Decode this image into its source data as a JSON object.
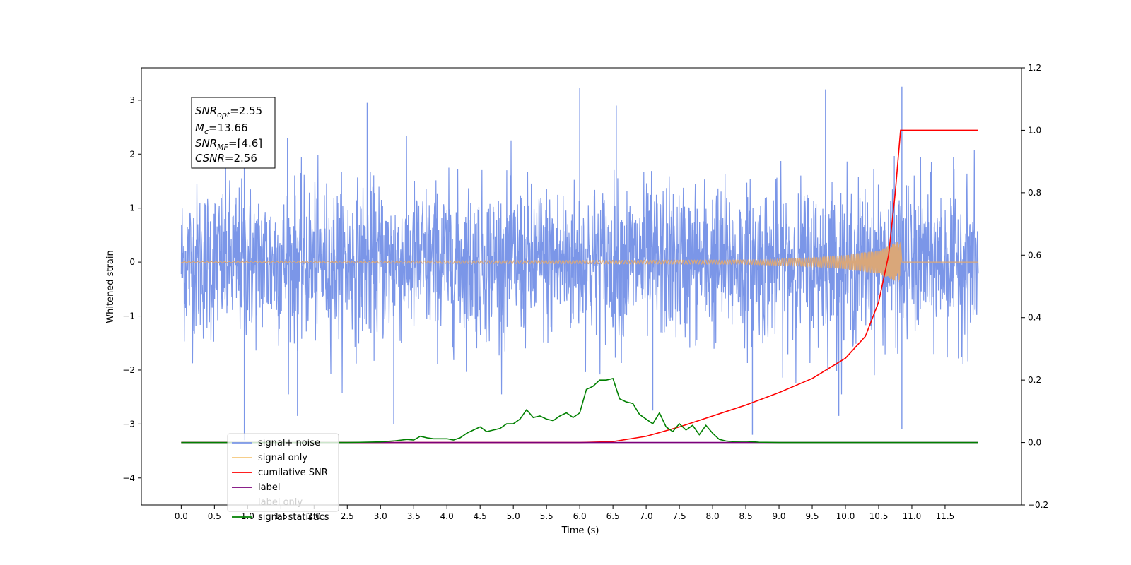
{
  "chart_data": {
    "type": "line",
    "xlabel": "Time (s)",
    "ylabel_left": "Whitened strain",
    "ylabel_right": "",
    "xlim": [
      -0.6,
      12.65
    ],
    "ylim_left": [
      -4.5,
      3.6
    ],
    "ylim_right": [
      -0.2,
      1.2
    ],
    "x_ticks": [
      "0.0",
      "0.5",
      "1.0",
      "1.5",
      "2.0",
      "2.5",
      "3.0",
      "3.5",
      "4.0",
      "4.5",
      "5.0",
      "5.5",
      "6.0",
      "6.5",
      "7.0",
      "7.5",
      "8.0",
      "8.5",
      "9.0",
      "9.5",
      "10.0",
      "10.5",
      "11.0",
      "11.5"
    ],
    "x_tick_values": [
      0.0,
      0.5,
      1.0,
      1.5,
      2.0,
      2.5,
      3.0,
      3.5,
      4.0,
      4.5,
      5.0,
      5.5,
      6.0,
      6.5,
      7.0,
      7.5,
      8.0,
      8.5,
      9.0,
      9.5,
      10.0,
      10.5,
      11.0,
      11.5
    ],
    "y_ticks_left": [
      "3",
      "2",
      "1",
      "0",
      "−1",
      "−2",
      "−3",
      "−4"
    ],
    "y_tick_values_left": [
      3,
      2,
      1,
      0,
      -1,
      -2,
      -3,
      -4
    ],
    "y_ticks_right": [
      "1.2",
      "1.0",
      "0.8",
      "0.6",
      "0.4",
      "0.2",
      "0.0",
      "−0.2"
    ],
    "y_tick_values_right": [
      1.2,
      1.0,
      0.8,
      0.6,
      0.4,
      0.2,
      0.0,
      -0.2
    ],
    "grid": false,
    "legend_position": "bottom-left",
    "annotation_box": {
      "lines": [
        {
          "base": "SNR",
          "sub": "opt",
          "rest": "=2.55"
        },
        {
          "base": "M",
          "sub": "c",
          "rest": "=13.66"
        },
        {
          "base": "SNR",
          "sub": "MF",
          "rest": "=[4.6]"
        },
        {
          "base": "CSNR",
          "sub": "",
          "rest": "=2.56"
        }
      ]
    },
    "series": [
      {
        "name": "signal+ noise",
        "axis": "left",
        "color": "#7b96e8",
        "kind": "noise",
        "x_range": [
          0.0,
          12.0
        ],
        "typical_range": [
          -1.5,
          1.5
        ],
        "extremes_upper": [
          [
            0.95,
            2.9
          ],
          [
            1.6,
            2.3
          ],
          [
            2.8,
            2.95
          ],
          [
            6.0,
            3.22
          ],
          [
            6.55,
            2.9
          ],
          [
            9.7,
            3.2
          ],
          [
            10.85,
            3.25
          ]
        ],
        "extremes_lower": [
          [
            0.95,
            -3.3
          ],
          [
            1.75,
            -2.85
          ],
          [
            3.2,
            -3.0
          ],
          [
            7.1,
            -2.75
          ],
          [
            8.6,
            -3.2
          ],
          [
            9.9,
            -2.85
          ],
          [
            10.85,
            -3.1
          ]
        ]
      },
      {
        "name": "signal only",
        "axis": "left",
        "color": "#d9a77a",
        "kind": "chirp",
        "x_range": [
          0.0,
          12.0
        ],
        "merger_time": 10.83,
        "envelope": [
          [
            0.0,
            0.01
          ],
          [
            8.5,
            0.04
          ],
          [
            9.5,
            0.08
          ],
          [
            10.0,
            0.13
          ],
          [
            10.5,
            0.22
          ],
          [
            10.8,
            0.38
          ],
          [
            10.83,
            0.42
          ],
          [
            10.85,
            0.0
          ],
          [
            12.0,
            0.0
          ]
        ]
      },
      {
        "name": "cumilative SNR",
        "axis": "right",
        "color": "#ff0000",
        "x": [
          0.0,
          6.0,
          6.5,
          7.0,
          7.5,
          8.0,
          8.5,
          9.0,
          9.5,
          10.0,
          10.3,
          10.5,
          10.65,
          10.75,
          10.83,
          10.85,
          12.0
        ],
        "y": [
          0.0,
          0.0,
          0.003,
          0.02,
          0.05,
          0.085,
          0.12,
          0.16,
          0.205,
          0.27,
          0.34,
          0.45,
          0.6,
          0.8,
          1.0,
          1.0,
          1.0
        ]
      },
      {
        "name": "label",
        "axis": "right",
        "color": "#7a007a",
        "x": [
          0.0,
          12.0
        ],
        "y": [
          0.0,
          0.0
        ]
      },
      {
        "name": "label only",
        "axis": "right",
        "color": "#8a8a8a",
        "x": [],
        "y": []
      },
      {
        "name": "signal statistics",
        "axis": "right",
        "color": "#008000",
        "x": [
          0.0,
          2.5,
          3.0,
          3.2,
          3.4,
          3.5,
          3.6,
          3.7,
          3.8,
          4.0,
          4.1,
          4.2,
          4.3,
          4.4,
          4.5,
          4.6,
          4.7,
          4.8,
          4.9,
          5.0,
          5.1,
          5.2,
          5.3,
          5.4,
          5.5,
          5.6,
          5.7,
          5.8,
          5.9,
          6.0,
          6.1,
          6.2,
          6.3,
          6.4,
          6.5,
          6.6,
          6.7,
          6.8,
          6.9,
          7.0,
          7.1,
          7.2,
          7.3,
          7.4,
          7.5,
          7.6,
          7.7,
          7.8,
          7.9,
          8.0,
          8.1,
          8.2,
          8.3,
          8.5,
          8.7,
          9.0,
          12.0
        ],
        "y": [
          0.0,
          0.0,
          0.002,
          0.005,
          0.01,
          0.008,
          0.02,
          0.015,
          0.012,
          0.012,
          0.008,
          0.015,
          0.03,
          0.04,
          0.05,
          0.035,
          0.04,
          0.045,
          0.06,
          0.06,
          0.075,
          0.105,
          0.08,
          0.085,
          0.075,
          0.07,
          0.085,
          0.095,
          0.08,
          0.095,
          0.17,
          0.18,
          0.2,
          0.2,
          0.205,
          0.14,
          0.13,
          0.125,
          0.09,
          0.075,
          0.06,
          0.095,
          0.05,
          0.035,
          0.06,
          0.04,
          0.055,
          0.025,
          0.055,
          0.03,
          0.01,
          0.005,
          0.003,
          0.004,
          0.001,
          0.0,
          0.0
        ]
      }
    ]
  }
}
